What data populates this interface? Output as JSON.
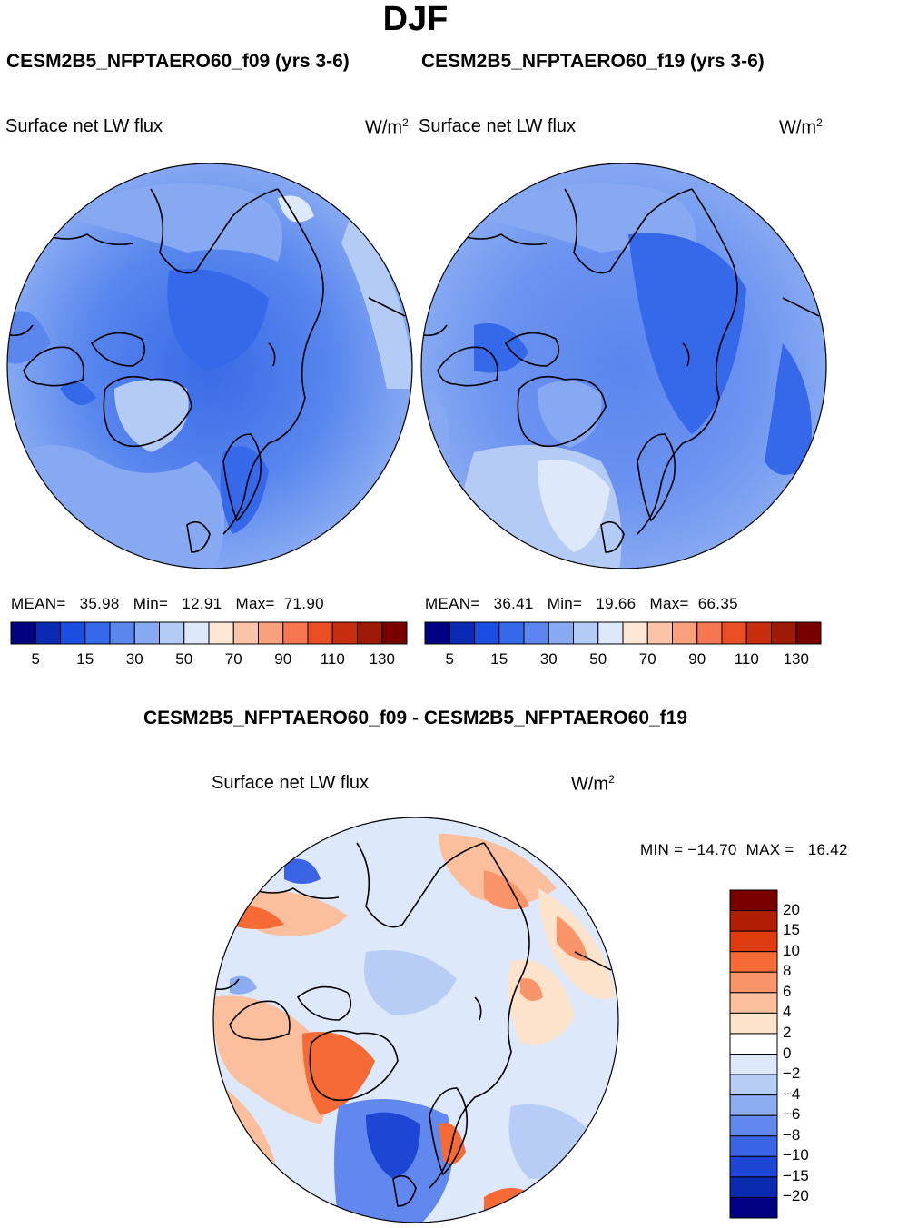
{
  "season": "DJF",
  "panels": [
    {
      "title": "CESM2B5_NFPTAERO60_f09 (yrs 3-6)",
      "variable": "Surface net LW flux",
      "units_base": "W/m",
      "units_exp": "2",
      "mean_label": "MEAN=",
      "mean": "35.98",
      "min_label": "Min=",
      "min": "12.91",
      "max_label": "Max=",
      "max": "71.90"
    },
    {
      "title": "CESM2B5_NFPTAERO60_f19 (yrs 3-6)",
      "variable": "Surface net LW flux",
      "units_base": "W/m",
      "units_exp": "2",
      "mean_label": "MEAN=",
      "mean": "36.41",
      "min_label": "Min=",
      "min": "19.66",
      "max_label": "Max=",
      "max": "66.35"
    }
  ],
  "horizontal_colorbar": {
    "colors": [
      "#000080",
      "#0a2ab3",
      "#1a4ee0",
      "#3668ea",
      "#5a86ee",
      "#86a9f2",
      "#b4cbf6",
      "#dde9fa",
      "#fde6d4",
      "#fcc4a6",
      "#f9a07c",
      "#f57650",
      "#ea4e24",
      "#c82e0e",
      "#9c1a06",
      "#7a0000"
    ],
    "ticks": [
      "5",
      "15",
      "30",
      "50",
      "70",
      "90",
      "110",
      "130"
    ]
  },
  "diff": {
    "title": "CESM2B5_NFPTAERO60_f09 - CESM2B5_NFPTAERO60_f19",
    "variable": "Surface net LW flux",
    "units_base": "W/m",
    "units_exp": "2",
    "minmax": "MIN = −14.70  MAX =   16.42",
    "colorbar_colors": [
      "#7a0000",
      "#b01e04",
      "#e03a10",
      "#f66a36",
      "#f99368",
      "#fbbf9e",
      "#fde3cc",
      "#ffffff",
      "#dde9fa",
      "#b8cdf6",
      "#8cacf2",
      "#6088ee",
      "#3a64e4",
      "#1e46d4",
      "#0a2ab0",
      "#000080"
    ],
    "colorbar_ticks": [
      "20",
      "15",
      "10",
      "8",
      "6",
      "4",
      "2",
      "0",
      "−2",
      "−4",
      "−6",
      "−8",
      "−10",
      "−15",
      "−20"
    ]
  }
}
